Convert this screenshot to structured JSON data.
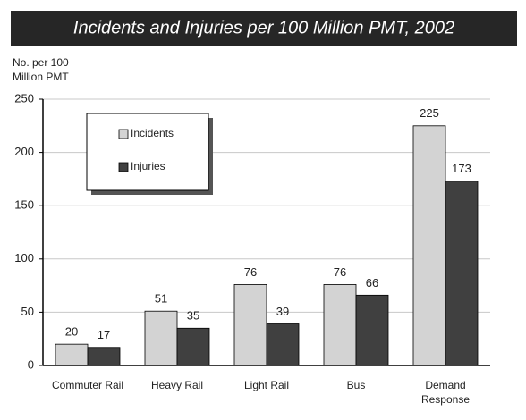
{
  "chart_data": {
    "type": "bar",
    "title": "Incidents and Injuries per 100 Million PMT, 2002",
    "y_label": "No. per 100 Million PMT",
    "categories": [
      "Commuter Rail",
      "Heavy Rail",
      "Light Rail",
      "Bus",
      "Demand Response"
    ],
    "series": [
      {
        "name": "Incidents",
        "color": "#d3d3d3",
        "values": [
          20,
          51,
          76,
          76,
          225
        ]
      },
      {
        "name": "Injuries",
        "color": "#404040",
        "values": [
          17,
          35,
          39,
          66,
          173
        ]
      }
    ],
    "ylim": [
      0,
      250
    ],
    "yticks": [
      0,
      50,
      100,
      150,
      200,
      250
    ],
    "grid": true,
    "legend": "upper left"
  }
}
